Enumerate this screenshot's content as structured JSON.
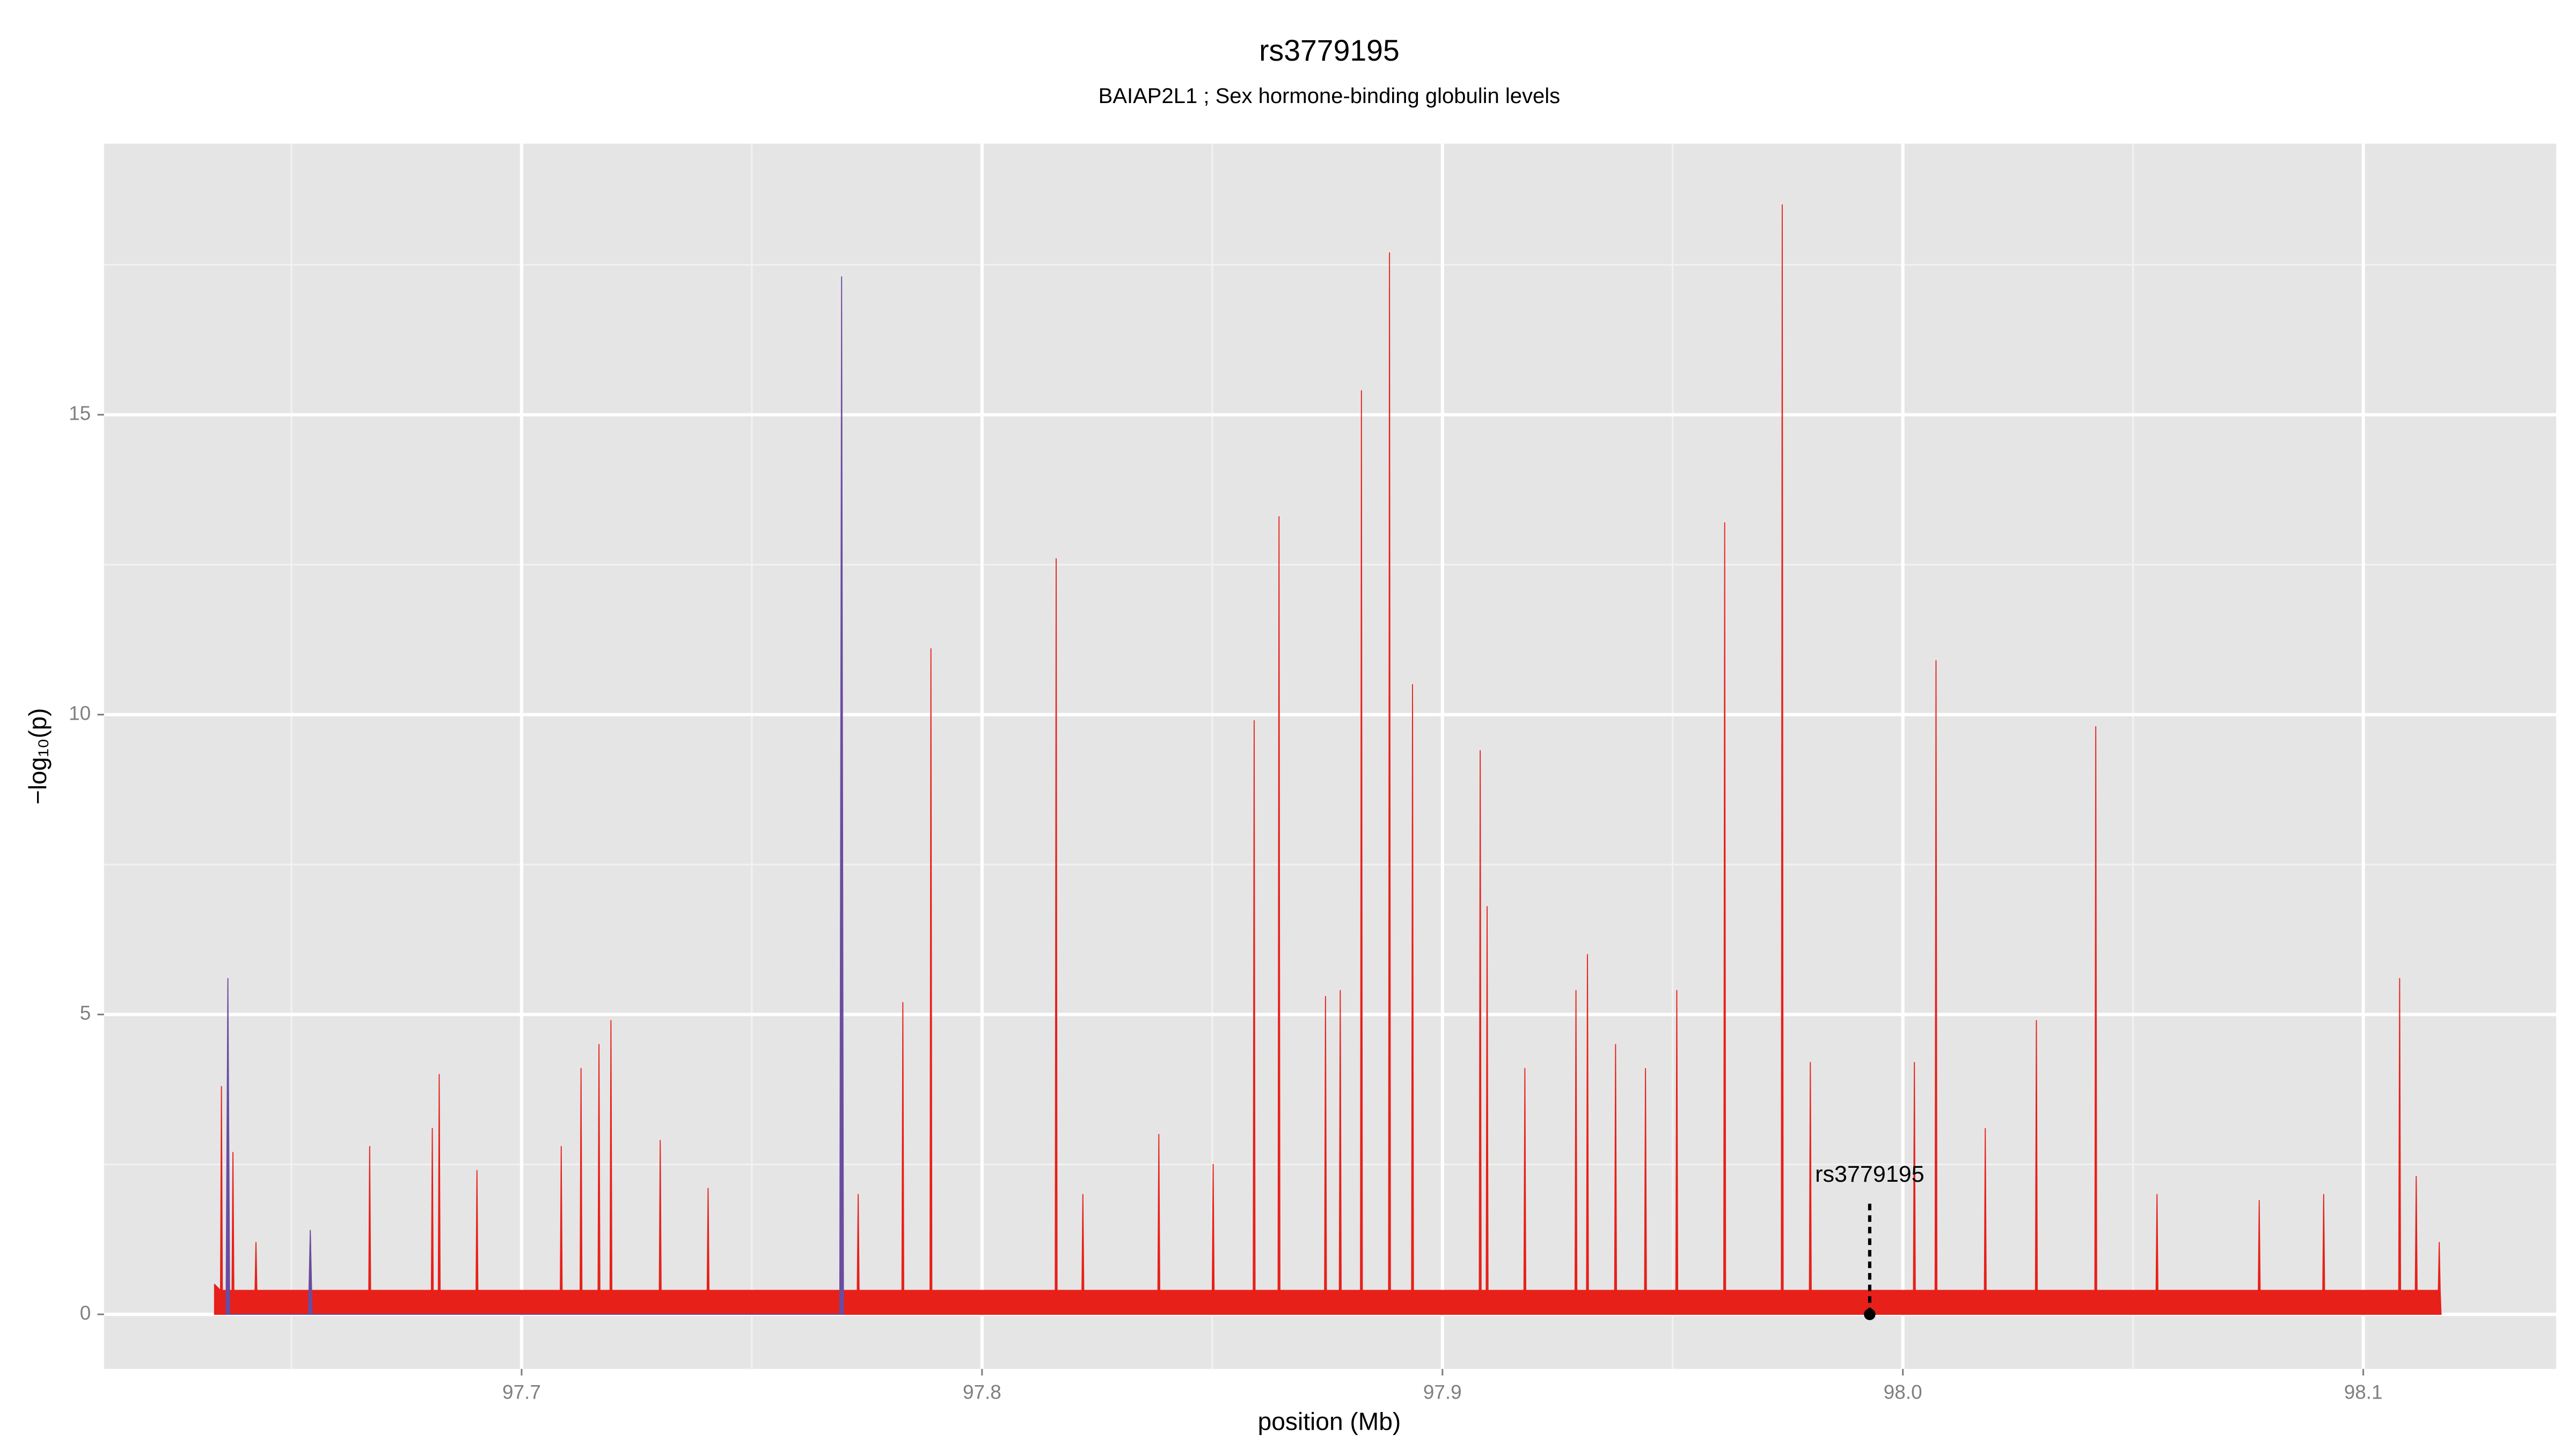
{
  "chart_data": {
    "type": "area",
    "title": "rs3779195",
    "subtitle": "BAIAP2L1 ; Sex hormone-binding globulin levels",
    "xlabel": "position (Mb)",
    "ylabel": "−log₁₀(p)",
    "xlim": [
      97.6093,
      98.1419
    ],
    "ylim": [
      -0.91,
      19.52
    ],
    "xticks": [
      97.7,
      97.8,
      97.9,
      {
        "value": 98,
        "label": "98.0"
      },
      98.1
    ],
    "yticks": [
      0,
      5,
      10,
      15
    ],
    "grid": true,
    "series": [
      {
        "color": "#e8201a",
        "x": [
          97.6333,
          97.6346,
          97.6348,
          97.635,
          97.6371,
          97.6373,
          97.6375,
          97.6421,
          97.6423,
          97.6425,
          97.6668,
          97.667,
          97.6672,
          97.6804,
          97.6806,
          97.6808,
          97.6819,
          97.6821,
          97.6823,
          97.6901,
          97.6903,
          97.6905,
          97.7084,
          97.7086,
          97.7088,
          97.7127,
          97.7129,
          97.7131,
          97.7166,
          97.7168,
          97.717,
          97.7192,
          97.7194,
          97.7196,
          97.7299,
          97.7301,
          97.7303,
          97.7403,
          97.7405,
          97.7407,
          97.7729,
          97.7731,
          97.7733,
          97.7826,
          97.7828,
          97.783,
          97.7887,
          97.7889,
          97.7891,
          97.8159,
          97.8161,
          97.8163,
          97.8217,
          97.8219,
          97.8221,
          97.8382,
          97.8384,
          97.8386,
          97.85,
          97.8502,
          97.8504,
          97.8589,
          97.8591,
          97.8593,
          97.8643,
          97.8645,
          97.8647,
          97.8744,
          97.8746,
          97.8748,
          97.8776,
          97.8778,
          97.878,
          97.8822,
          97.8824,
          97.8826,
          97.8883,
          97.8885,
          97.8887,
          97.8933,
          97.8935,
          97.8937,
          97.908,
          97.9082,
          97.9084,
          97.9095,
          97.9097,
          97.9099,
          97.9177,
          97.9179,
          97.9181,
          97.9288,
          97.929,
          97.9292,
          97.9313,
          97.9315,
          97.9317,
          97.9374,
          97.9376,
          97.9378,
          97.9439,
          97.9441,
          97.9443,
          97.9507,
          97.9509,
          97.9511,
          97.9611,
          97.9613,
          97.9615,
          97.9736,
          97.9738,
          97.974,
          97.9797,
          97.9799,
          97.9801,
          98.0023,
          98.0025,
          98.0027,
          98.007,
          98.0072,
          98.0074,
          98.0177,
          98.0179,
          98.0181,
          98.0288,
          98.029,
          98.0292,
          98.0417,
          98.0419,
          98.0421,
          98.055,
          98.0552,
          98.0554,
          98.0772,
          98.0774,
          98.0776,
          98.0912,
          98.0914,
          98.0916,
          98.1077,
          98.1079,
          98.1081,
          98.1113,
          98.1115,
          98.1117,
          98.1163,
          98.1165,
          98.1167,
          98.1169
        ],
        "values": [
          0.5,
          0.4,
          3.8,
          0.4,
          0.4,
          2.7,
          0.4,
          0.4,
          1.2,
          0.4,
          0.4,
          2.8,
          0.4,
          0.4,
          3.1,
          0.4,
          0.4,
          4.0,
          0.4,
          0.4,
          2.4,
          0.4,
          0.4,
          2.8,
          0.4,
          0.4,
          4.1,
          0.4,
          0.4,
          4.5,
          0.4,
          0.4,
          4.9,
          0.4,
          0.4,
          2.9,
          0.4,
          0.4,
          2.1,
          0.4,
          0.4,
          2.0,
          0.4,
          0.4,
          5.2,
          0.4,
          0.4,
          11.1,
          0.4,
          0.4,
          12.6,
          0.4,
          0.4,
          2.0,
          0.4,
          0.4,
          3.0,
          0.4,
          0.4,
          2.5,
          0.4,
          0.4,
          9.9,
          0.4,
          0.4,
          13.3,
          0.4,
          0.4,
          5.3,
          0.4,
          0.4,
          5.4,
          0.4,
          0.4,
          15.4,
          0.4,
          0.4,
          17.7,
          0.4,
          0.4,
          10.5,
          0.4,
          0.4,
          9.4,
          0.4,
          0.4,
          6.8,
          0.4,
          0.4,
          4.1,
          0.4,
          0.4,
          5.4,
          0.4,
          0.4,
          6.0,
          0.4,
          0.4,
          4.5,
          0.4,
          0.4,
          4.1,
          0.4,
          0.4,
          5.4,
          0.4,
          0.4,
          13.2,
          0.4,
          0.4,
          18.5,
          0.4,
          0.4,
          4.2,
          0.4,
          0.4,
          4.2,
          0.4,
          0.4,
          10.9,
          0.4,
          0.4,
          3.1,
          0.4,
          0.4,
          4.9,
          0.4,
          0.4,
          9.8,
          0.4,
          0.4,
          2.0,
          0.4,
          0.4,
          1.9,
          0.4,
          0.4,
          2.0,
          0.4,
          0.4,
          5.6,
          0.4,
          0.4,
          2.3,
          0.4,
          0.4,
          1.2,
          0.4,
          0
        ]
      },
      {
        "color": "#6a4ca0",
        "x": [
          97.6358,
          97.6362,
          97.6366,
          97.6537,
          97.6541,
          97.6545,
          97.7691,
          97.7695,
          97.7699
        ],
        "values": [
          0,
          5.6,
          0,
          0,
          1.4,
          0,
          0,
          17.3,
          0
        ]
      }
    ],
    "highlight": {
      "label": "rs3779195",
      "x": 97.9928,
      "y": 0
    }
  }
}
